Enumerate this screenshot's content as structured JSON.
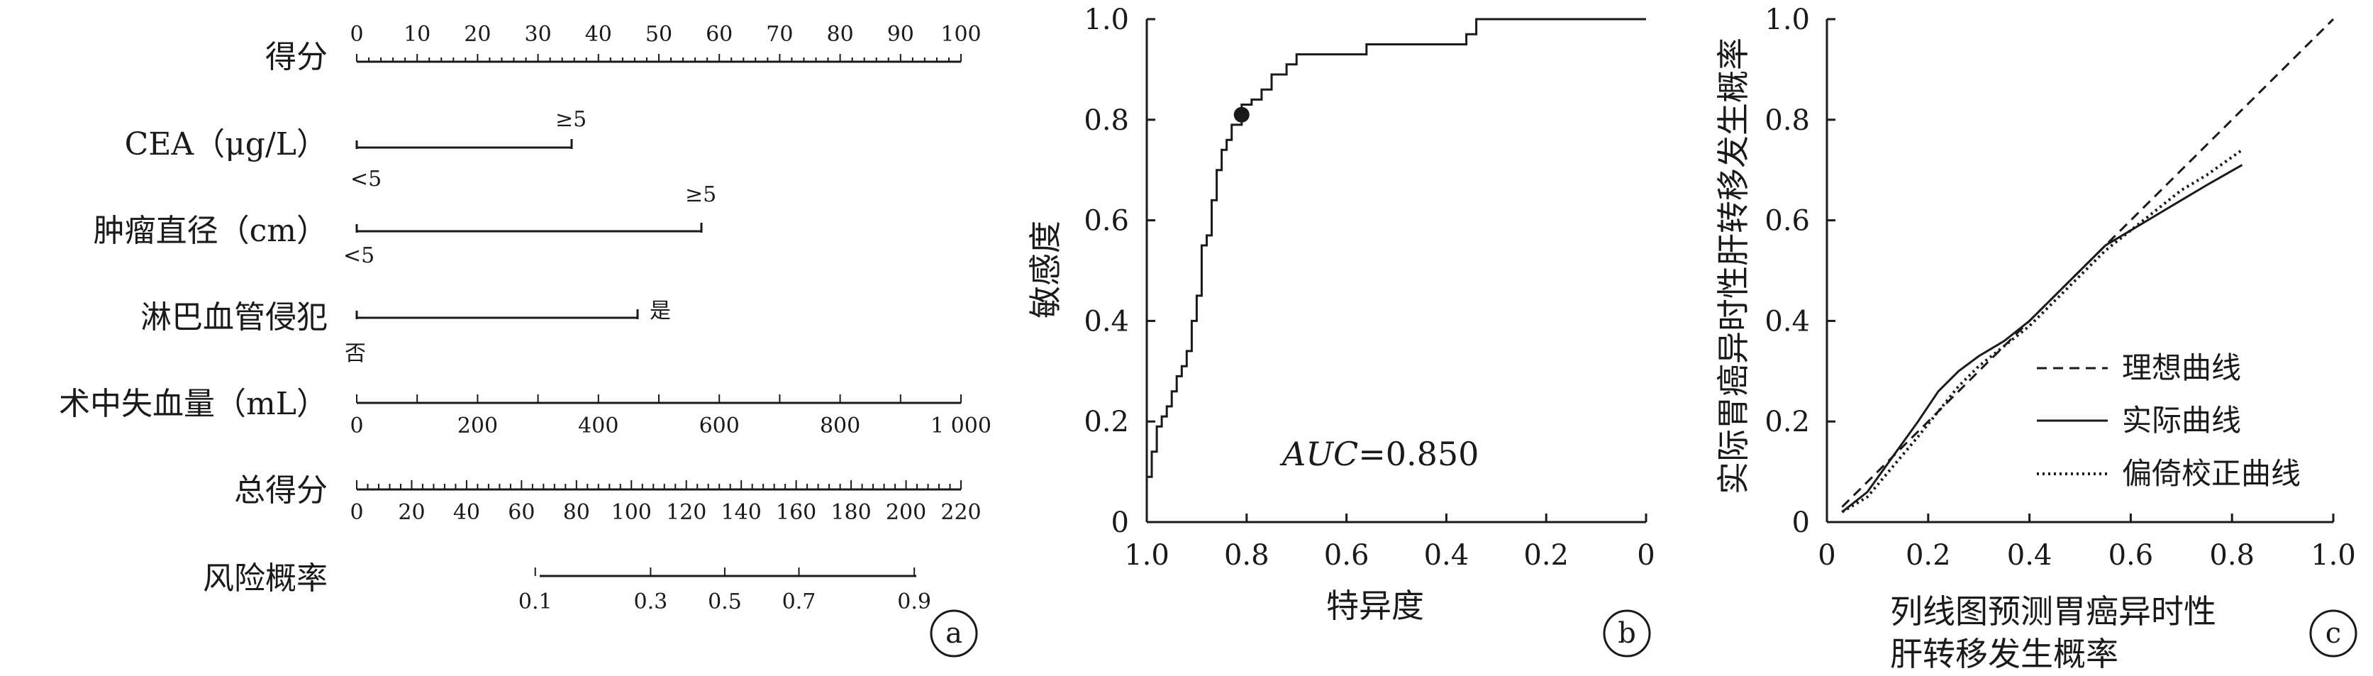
{
  "panel_a": {
    "letter": "a",
    "rows": [
      {
        "label": "得分",
        "ticks": [
          "0",
          "10",
          "20",
          "30",
          "40",
          "50",
          "60",
          "70",
          "80",
          "90",
          "100"
        ]
      },
      {
        "label": "CEA（μg/L）",
        "low": "<5",
        "high": "≥5"
      },
      {
        "label": "肿瘤直径（cm）",
        "low": "<5",
        "high": "≥5"
      },
      {
        "label": "淋巴血管侵犯",
        "low": "否",
        "high": "是"
      },
      {
        "label": "术中失血量（mL）",
        "ticks": [
          "0",
          "200",
          "400",
          "600",
          "800",
          "1 000"
        ]
      },
      {
        "label": "总得分",
        "ticks": [
          "0",
          "20",
          "40",
          "60",
          "80",
          "100",
          "120",
          "140",
          "160",
          "180",
          "200",
          "220"
        ]
      },
      {
        "label": "风险概率",
        "ticks": [
          "0.1",
          "0.3",
          "0.5",
          "0.7",
          "0.9"
        ]
      }
    ]
  },
  "panel_b": {
    "letter": "b",
    "xlabel": "特异度",
    "ylabel": "敏感度",
    "auc_label": "AUC",
    "auc_value": "=0.850",
    "xticks": [
      "1.0",
      "0.8",
      "0.6",
      "0.4",
      "0.2",
      "0"
    ],
    "yticks": [
      "0",
      "0.2",
      "0.4",
      "0.6",
      "0.8",
      "1.0"
    ]
  },
  "panel_c": {
    "letter": "c",
    "xlabel_line1": "列线图预测胃癌异时性",
    "xlabel_line2": "肝转移发生概率",
    "ylabel": "实际胃癌异时性肝转移发生概率",
    "xticks": [
      "0",
      "0.2",
      "0.4",
      "0.6",
      "0.8",
      "1.0"
    ],
    "yticks": [
      "0",
      "0.2",
      "0.4",
      "0.6",
      "0.8",
      "1.0"
    ],
    "legend": [
      "理想曲线",
      "实际曲线",
      "偏倚校正曲线"
    ]
  },
  "chart_data": [
    {
      "type": "line",
      "title": "",
      "subtype": "nomogram",
      "variables": [
        {
          "name": "CEA（μg/L）",
          "levels": [
            "<5",
            "≥5"
          ],
          "points": [
            0,
            35.5
          ]
        },
        {
          "name": "肿瘤直径（cm）",
          "levels": [
            "<5",
            "≥5"
          ],
          "points": [
            0,
            57
          ]
        },
        {
          "name": "淋巴血管侵犯",
          "levels": [
            "否",
            "是"
          ],
          "points": [
            0,
            46.5
          ]
        },
        {
          "name": "术中失血量（mL）",
          "range": [
            0,
            1000
          ],
          "points": [
            0,
            100
          ]
        }
      ],
      "points_scale": [
        0,
        100
      ],
      "total_points_scale": [
        0,
        220
      ],
      "risk_probability": [
        {
          "p": 0.1,
          "total_points": 65
        },
        {
          "p": 0.3,
          "total_points": 107
        },
        {
          "p": 0.5,
          "total_points": 134
        },
        {
          "p": 0.7,
          "total_points": 161
        },
        {
          "p": 0.9,
          "total_points": 203
        }
      ]
    },
    {
      "type": "line",
      "title": "",
      "xlabel": "特异度",
      "ylabel": "敏感度",
      "xlim": [
        1.0,
        0
      ],
      "ylim": [
        0,
        1.0
      ],
      "annotation": "AUC=0.850",
      "cutoff_point": {
        "specificity": 0.81,
        "sensitivity": 0.81
      },
      "series": [
        {
          "specificity": [
            1.0,
            1.0,
            0.99,
            0.99,
            0.98,
            0.98,
            0.97,
            0.97,
            0.96,
            0.96,
            0.95,
            0.95,
            0.94,
            0.94,
            0.93,
            0.93,
            0.92,
            0.92,
            0.91,
            0.91,
            0.9,
            0.9,
            0.89,
            0.89,
            0.88,
            0.88,
            0.87,
            0.87,
            0.86,
            0.86,
            0.85,
            0.85,
            0.84,
            0.84,
            0.83,
            0.83,
            0.81,
            0.81,
            0.79,
            0.79,
            0.77,
            0.77,
            0.75,
            0.75,
            0.72,
            0.72,
            0.7,
            0.7,
            0.68,
            0.68,
            0.56,
            0.56,
            0.36,
            0.36,
            0.34,
            0.34,
            0.0
          ],
          "sensitivity": [
            0.0,
            0.09,
            0.09,
            0.14,
            0.14,
            0.19,
            0.19,
            0.21,
            0.21,
            0.23,
            0.23,
            0.26,
            0.26,
            0.29,
            0.29,
            0.31,
            0.31,
            0.34,
            0.34,
            0.4,
            0.4,
            0.45,
            0.45,
            0.55,
            0.55,
            0.57,
            0.57,
            0.64,
            0.64,
            0.7,
            0.7,
            0.74,
            0.74,
            0.76,
            0.76,
            0.79,
            0.79,
            0.83,
            0.83,
            0.84,
            0.84,
            0.86,
            0.86,
            0.89,
            0.89,
            0.91,
            0.91,
            0.93,
            0.93,
            0.93,
            0.93,
            0.95,
            0.95,
            0.97,
            0.97,
            1.0,
            1.0
          ]
        }
      ]
    },
    {
      "type": "line",
      "title": "",
      "xlabel": "列线图预测胃癌异时性肝转移发生概率",
      "ylabel": "实际胃癌异时性肝转移发生概率",
      "xlim": [
        0,
        1.0
      ],
      "ylim": [
        0,
        1.0
      ],
      "series": [
        {
          "name": "理想曲线",
          "style": "dashed",
          "x": [
            0.03,
            1.0
          ],
          "y": [
            0.03,
            1.0
          ]
        },
        {
          "name": "实际曲线",
          "style": "solid",
          "x": [
            0.03,
            0.08,
            0.13,
            0.18,
            0.22,
            0.26,
            0.3,
            0.35,
            0.4,
            0.45,
            0.5,
            0.55,
            0.6,
            0.65,
            0.7,
            0.75,
            0.82
          ],
          "y": [
            0.02,
            0.06,
            0.13,
            0.2,
            0.26,
            0.3,
            0.33,
            0.36,
            0.4,
            0.45,
            0.5,
            0.55,
            0.58,
            0.61,
            0.64,
            0.67,
            0.71
          ]
        },
        {
          "name": "偏倚校正曲线",
          "style": "dotted",
          "x": [
            0.03,
            0.08,
            0.13,
            0.18,
            0.22,
            0.26,
            0.3,
            0.35,
            0.4,
            0.45,
            0.5,
            0.55,
            0.6,
            0.65,
            0.7,
            0.75,
            0.82
          ],
          "y": [
            0.02,
            0.05,
            0.11,
            0.17,
            0.22,
            0.27,
            0.31,
            0.35,
            0.39,
            0.44,
            0.49,
            0.54,
            0.58,
            0.62,
            0.66,
            0.69,
            0.74
          ]
        }
      ]
    }
  ]
}
